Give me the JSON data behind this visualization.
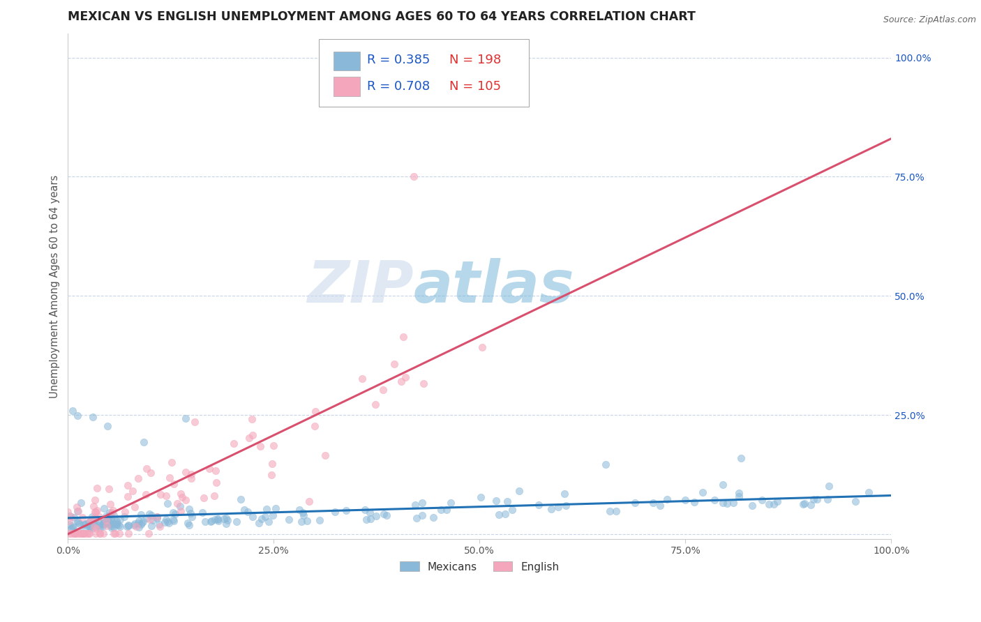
{
  "title": "MEXICAN VS ENGLISH UNEMPLOYMENT AMONG AGES 60 TO 64 YEARS CORRELATION CHART",
  "source": "Source: ZipAtlas.com",
  "ylabel": "Unemployment Among Ages 60 to 64 years",
  "xlim": [
    0.0,
    1.0
  ],
  "ylim": [
    -0.01,
    1.05
  ],
  "xticks": [
    0.0,
    0.25,
    0.5,
    0.75,
    1.0
  ],
  "xtick_labels": [
    "0.0%",
    "25.0%",
    "50.0%",
    "75.0%",
    "100.0%"
  ],
  "yticks": [
    0.0,
    0.25,
    0.5,
    0.75,
    1.0
  ],
  "ytick_labels": [
    "",
    "25.0%",
    "50.0%",
    "75.0%",
    "100.0%"
  ],
  "mexicans_color": "#89b8d9",
  "english_color": "#f4a7bc",
  "mexicans_line_color": "#2171b5",
  "english_line_color": "#d94f6e",
  "legend_R_color": "#1a56c4",
  "legend_N_color": "#e03030",
  "watermark_zip_color": "#c8d8ea",
  "watermark_atlas_color": "#7ab8d9",
  "background_color": "#ffffff",
  "grid_color": "#c8d4e8",
  "title_fontsize": 12.5,
  "axis_label_fontsize": 10.5,
  "tick_fontsize": 10,
  "legend_fontsize": 13
}
